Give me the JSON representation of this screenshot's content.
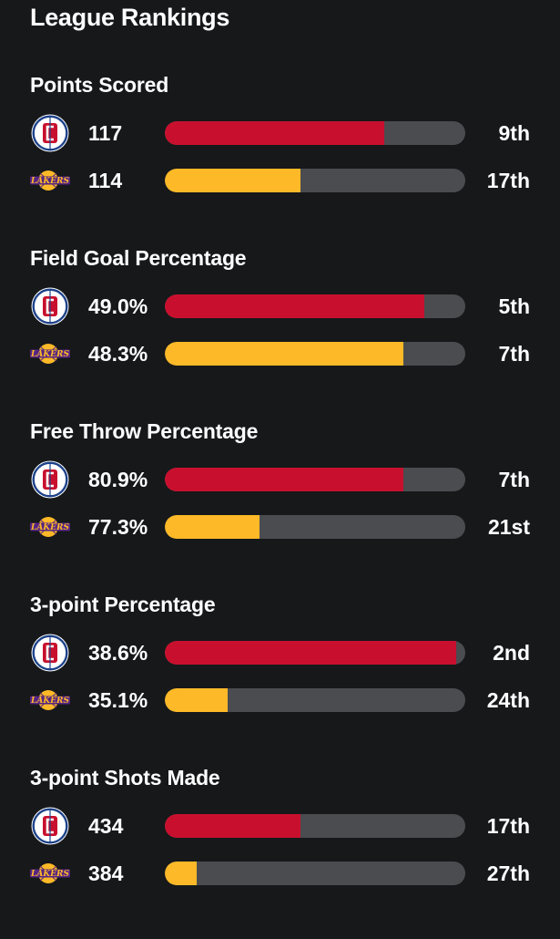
{
  "page": {
    "title": "League Rankings"
  },
  "colors": {
    "clippers_bar": "#c8102e",
    "lakers_bar": "#fdb927",
    "track": "#4a4c50",
    "background": "#16181a"
  },
  "teams": [
    {
      "key": "clippers",
      "logo_icon": "clippers-logo-icon"
    },
    {
      "key": "lakers",
      "logo_icon": "lakers-logo-icon",
      "logo_text": "LAKERS"
    }
  ],
  "sections": [
    {
      "title": "Points Scored",
      "rows": [
        {
          "team": "clippers",
          "value": "117",
          "rank": "9th",
          "fill": 0.73
        },
        {
          "team": "lakers",
          "value": "114",
          "rank": "17th",
          "fill": 0.45
        }
      ]
    },
    {
      "title": "Field Goal Percentage",
      "rows": [
        {
          "team": "clippers",
          "value": "49.0%",
          "rank": "5th",
          "fill": 0.865
        },
        {
          "team": "lakers",
          "value": "48.3%",
          "rank": "7th",
          "fill": 0.795
        }
      ]
    },
    {
      "title": "Free Throw Percentage",
      "rows": [
        {
          "team": "clippers",
          "value": "80.9%",
          "rank": "7th",
          "fill": 0.795
        },
        {
          "team": "lakers",
          "value": "77.3%",
          "rank": "21st",
          "fill": 0.315
        }
      ]
    },
    {
      "title": "3-point Percentage",
      "rows": [
        {
          "team": "clippers",
          "value": "38.6%",
          "rank": "2nd",
          "fill": 0.97
        },
        {
          "team": "lakers",
          "value": "35.1%",
          "rank": "24th",
          "fill": 0.21
        }
      ]
    },
    {
      "title": "3-point Shots Made",
      "rows": [
        {
          "team": "clippers",
          "value": "434",
          "rank": "17th",
          "fill": 0.45
        },
        {
          "team": "lakers",
          "value": "384",
          "rank": "27th",
          "fill": 0.105
        }
      ]
    }
  ]
}
